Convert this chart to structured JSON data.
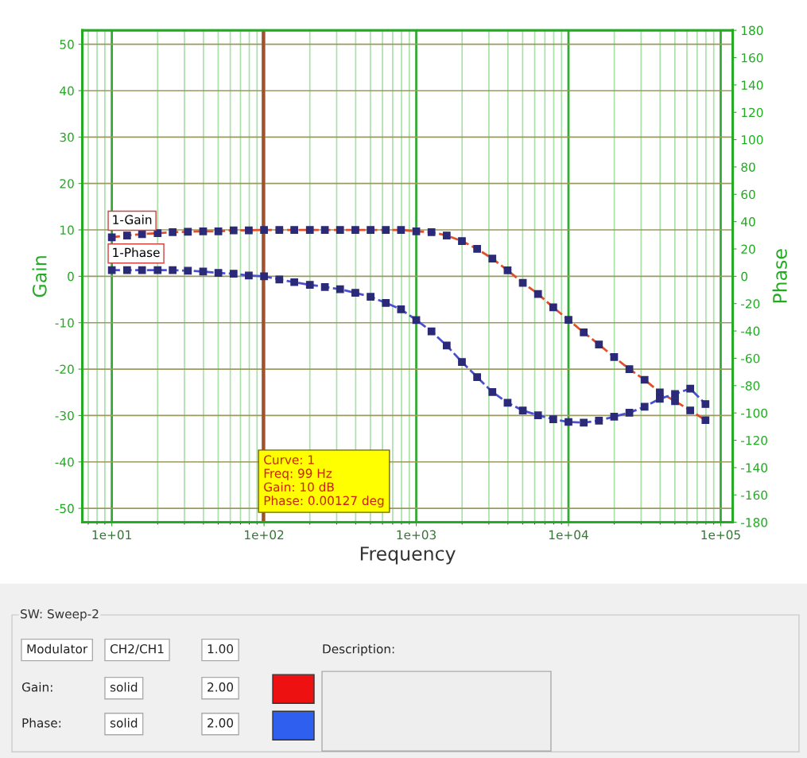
{
  "chart_data": [
    {
      "type": "line",
      "xlabel": "Frequency",
      "ylabel": "Gain",
      "y2label": "Phase",
      "x": [
        10,
        12.6,
        15.8,
        20,
        25.1,
        31.6,
        39.8,
        50.1,
        63.1,
        79.4,
        100,
        126,
        158,
        200,
        251,
        316,
        398,
        501,
        631,
        794,
        1000,
        1259,
        1585,
        1995,
        2512,
        3162,
        3981,
        5012,
        6310,
        7943,
        10000,
        12589,
        15849,
        19953,
        25119,
        31623,
        39811,
        50119,
        63096,
        79433
      ],
      "series": [
        {
          "name": "1-Gain",
          "color": "#e0502a",
          "values": [
            8.4,
            8.8,
            9.1,
            9.3,
            9.5,
            9.6,
            9.7,
            9.7,
            9.9,
            9.9,
            10,
            10,
            10,
            10,
            10,
            10,
            10,
            10,
            10,
            10,
            9.7,
            9.5,
            8.8,
            7.6,
            5.9,
            3.8,
            1.3,
            -1.4,
            -3.8,
            -6.7,
            -9.4,
            -12.1,
            -14.7,
            -17.4,
            -20,
            -22.3,
            -25,
            -26.9,
            -28.9,
            -31
          ]
        },
        {
          "name": "1-Phase",
          "color": "#4a50d0",
          "axis": "y2",
          "values": [
            4.5,
            4.5,
            4.5,
            4.5,
            4.5,
            4.1,
            3.5,
            2.5,
            1.9,
            0.6,
            0,
            -2.3,
            -4.3,
            -6.2,
            -7.8,
            -9.5,
            -12.1,
            -15,
            -19.5,
            -24.2,
            -32,
            -40.3,
            -50.7,
            -62.7,
            -73.8,
            -84.7,
            -92.5,
            -98.2,
            -101.7,
            -104.6,
            -106.6,
            -107.1,
            -105.6,
            -102.7,
            -99.8,
            -95.5,
            -89.6,
            -86.1,
            -82.2,
            -93.5
          ]
        }
      ],
      "log": "x",
      "xlim": [
        6.4,
        120000
      ],
      "xticks": [
        {
          "value": 7,
          "label": null
        },
        {
          "value": 8,
          "label": null
        },
        {
          "value": 9,
          "label": null
        },
        {
          "value": 10,
          "label": "1e+01"
        },
        {
          "value": 20,
          "label": null
        },
        {
          "value": 30,
          "label": null
        },
        {
          "value": 40,
          "label": null
        },
        {
          "value": 50,
          "label": null
        },
        {
          "value": 60,
          "label": null
        },
        {
          "value": 70,
          "label": null
        },
        {
          "value": 80,
          "label": null
        },
        {
          "value": 90,
          "label": null
        },
        {
          "value": 100,
          "label": "1e+02"
        },
        {
          "value": 200,
          "label": null
        },
        {
          "value": 300,
          "label": null
        },
        {
          "value": 400,
          "label": null
        },
        {
          "value": 500,
          "label": null
        },
        {
          "value": 600,
          "label": null
        },
        {
          "value": 700,
          "label": null
        },
        {
          "value": 800,
          "label": null
        },
        {
          "value": 900,
          "label": null
        },
        {
          "value": 1000,
          "label": "1e+03"
        },
        {
          "value": 2000,
          "label": null
        },
        {
          "value": 3000,
          "label": null
        },
        {
          "value": 4000,
          "label": null
        },
        {
          "value": 5000,
          "label": null
        },
        {
          "value": 6000,
          "label": null
        },
        {
          "value": 7000,
          "label": null
        },
        {
          "value": 8000,
          "label": null
        },
        {
          "value": 9000,
          "label": null
        },
        {
          "value": 10000,
          "label": "1e+04"
        },
        {
          "value": 20000,
          "label": null
        },
        {
          "value": 30000,
          "label": null
        },
        {
          "value": 40000,
          "label": null
        },
        {
          "value": 50000,
          "label": null
        },
        {
          "value": 60000,
          "label": null
        },
        {
          "value": 70000,
          "label": null
        },
        {
          "value": 80000,
          "label": null
        },
        {
          "value": 90000,
          "label": null
        },
        {
          "value": 100000,
          "label": "1e+05"
        }
      ],
      "ylim": [
        -53,
        53
      ],
      "yticks": [
        -50,
        -40,
        -30,
        -20,
        -10,
        0,
        10,
        20,
        30,
        40,
        50
      ],
      "y2lim": [
        -180,
        180
      ],
      "y2ticks": [
        -180,
        -160,
        -140,
        -120,
        -100,
        -80,
        -60,
        -40,
        -20,
        0,
        20,
        40,
        60,
        80,
        100,
        120,
        140,
        160,
        180
      ],
      "grid": true,
      "legend": false,
      "marker": "square",
      "line_style": "dashed",
      "ref_lines": [
        {
          "axis": "x",
          "value": 99,
          "color": "#a0522d"
        }
      ],
      "annotations": [
        "Curve: 1\nFreq: 99 Hz\nGain: 10 dB\nPhase: 0.00127 deg"
      ]
    },
    {
      "type": "other",
      "title": "SW: Sweep-2",
      "annotations": [
        "Modulator",
        "CH2/CH1",
        "1.00",
        "Description:",
        "Gain:",
        "solid",
        "2.00",
        "Phase:",
        "solid",
        "2.00"
      ],
      "colors": [
        "#ee1111",
        "#2f5fee"
      ]
    }
  ]
}
